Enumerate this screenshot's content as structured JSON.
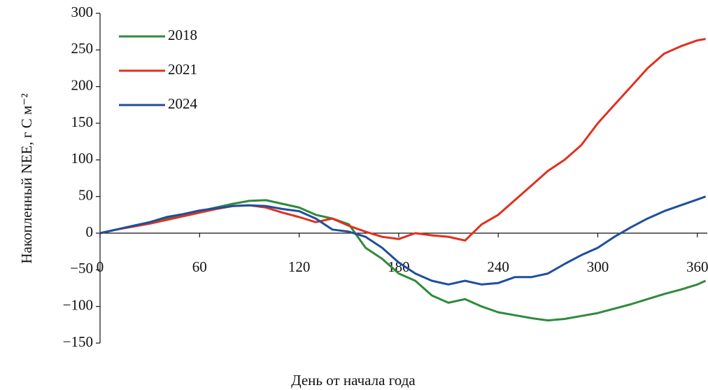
{
  "chart_data": {
    "type": "line",
    "x_label": "День от начала года",
    "y_label": "Накопленный NEE, г C м⁻²",
    "x": [
      0,
      10,
      20,
      30,
      40,
      50,
      60,
      70,
      80,
      90,
      100,
      110,
      120,
      130,
      140,
      150,
      160,
      170,
      180,
      190,
      200,
      210,
      220,
      230,
      240,
      250,
      260,
      270,
      280,
      290,
      300,
      310,
      320,
      330,
      340,
      350,
      360,
      365
    ],
    "series": [
      {
        "name": "2018",
        "color": "#2f8a3b",
        "values": [
          0,
          5,
          10,
          15,
          20,
          25,
          30,
          35,
          40,
          44,
          45,
          40,
          35,
          25,
          20,
          12,
          -20,
          -35,
          -55,
          -65,
          -85,
          -95,
          -90,
          -100,
          -108,
          -112,
          -116,
          -119,
          -117,
          -113,
          -109,
          -103,
          -97,
          -90,
          -83,
          -77,
          -70,
          -65
        ]
      },
      {
        "name": "2021",
        "color": "#e0311f",
        "values": [
          0,
          5,
          9,
          13,
          18,
          23,
          28,
          33,
          37,
          38,
          35,
          28,
          22,
          15,
          20,
          10,
          2,
          -5,
          -8,
          0,
          -3,
          -5,
          -10,
          12,
          25,
          45,
          65,
          85,
          100,
          120,
          150,
          175,
          200,
          225,
          245,
          255,
          263,
          265
        ]
      },
      {
        "name": "2024",
        "color": "#1f4f9c",
        "values": [
          0,
          5,
          10,
          15,
          22,
          26,
          31,
          34,
          37,
          38,
          37,
          33,
          30,
          20,
          5,
          2,
          -5,
          -20,
          -40,
          -55,
          -65,
          -70,
          -65,
          -70,
          -68,
          -60,
          -60,
          -55,
          -42,
          -30,
          -20,
          -5,
          8,
          20,
          30,
          38,
          46,
          50
        ]
      }
    ],
    "xlim": [
      0,
      366
    ],
    "ylim": [
      -150,
      300
    ],
    "xticks": [
      0,
      60,
      120,
      180,
      240,
      300,
      360
    ],
    "yticks": [
      {
        "value": -150,
        "label": "−150"
      },
      {
        "value": -100,
        "label": "−100"
      },
      {
        "value": -50,
        "label": "−50"
      },
      0,
      50,
      100,
      150,
      200,
      250,
      300
    ],
    "grid": false,
    "legend": "upper left"
  }
}
